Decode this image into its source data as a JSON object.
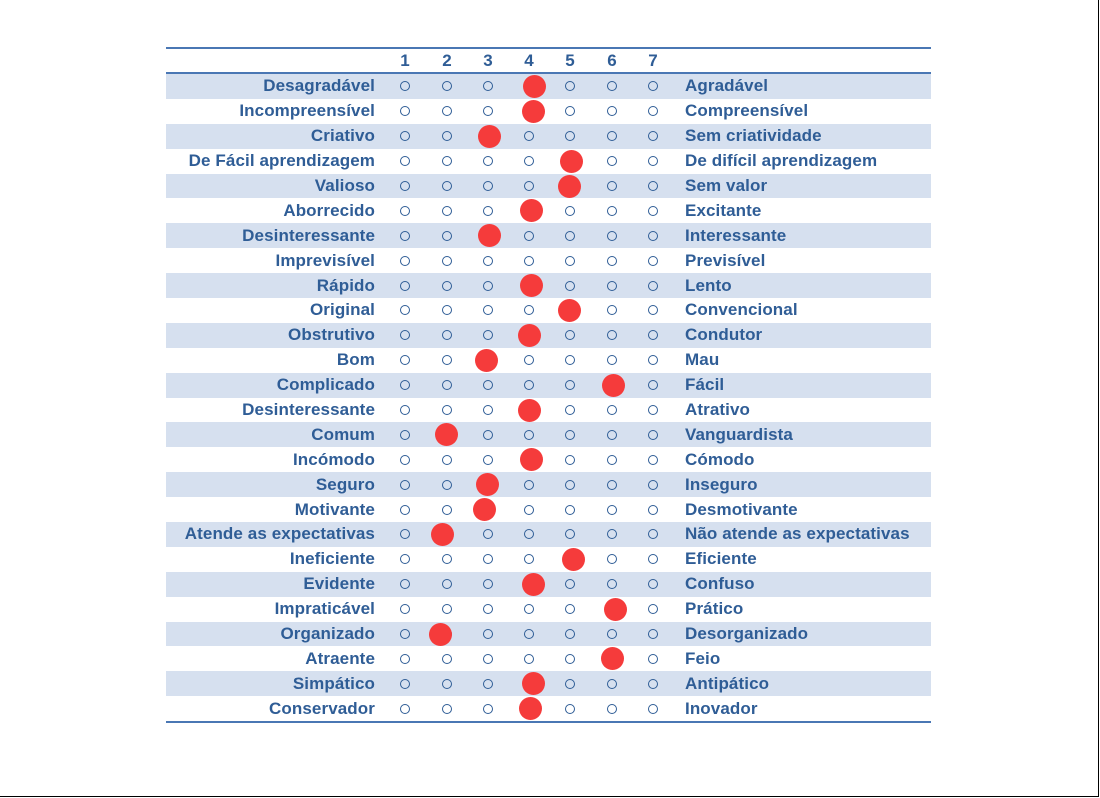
{
  "scale": {
    "points": [
      "1",
      "2",
      "3",
      "4",
      "5",
      "6",
      "7"
    ]
  },
  "colors": {
    "label_text": "#2f5d96",
    "row_shade": "#d6e0ef",
    "rule": "#4a77b4",
    "marker": "#f53b3b"
  },
  "items": [
    {
      "left": "Desagradável",
      "right": "Agradável",
      "value": 4
    },
    {
      "left": "Incompreensível",
      "right": "Compreensível",
      "value": 4
    },
    {
      "left": "Criativo",
      "right": "Sem criatividade",
      "value": 3
    },
    {
      "left": "De Fácil aprendizagem",
      "right": "De difícil aprendizagem",
      "value": 5
    },
    {
      "left": "Valioso",
      "right": "Sem valor",
      "value": 5
    },
    {
      "left": "Aborrecido",
      "right": "Excitante",
      "value": 4
    },
    {
      "left": "Desinteressante",
      "right": "Interessante",
      "value": 3
    },
    {
      "left": "Imprevisível",
      "right": "Previsível",
      "value": null
    },
    {
      "left": "Rápido",
      "right": "Lento",
      "value": 4
    },
    {
      "left": "Original",
      "right": "Convencional",
      "value": 5
    },
    {
      "left": "Obstrutivo",
      "right": "Condutor",
      "value": 4
    },
    {
      "left": "Bom",
      "right": "Mau",
      "value": 3
    },
    {
      "left": "Complicado",
      "right": "Fácil",
      "value": 6
    },
    {
      "left": "Desinteressante",
      "right": "Atrativo",
      "value": 4
    },
    {
      "left": "Comum",
      "right": "Vanguardista",
      "value": 2
    },
    {
      "left": "Incómodo",
      "right": "Cómodo",
      "value": 4
    },
    {
      "left": "Seguro",
      "right": "Inseguro",
      "value": 3
    },
    {
      "left": "Motivante",
      "right": "Desmotivante",
      "value": 3
    },
    {
      "left": "Atende as expectativas",
      "right": "Não atende as expectativas",
      "value": 2
    },
    {
      "left": "Ineficiente",
      "right": "Eficiente",
      "value": 5
    },
    {
      "left": "Evidente",
      "right": "Confuso",
      "value": 4
    },
    {
      "left": "Impraticável",
      "right": "Prático",
      "value": 6
    },
    {
      "left": "Organizado",
      "right": "Desorganizado",
      "value": 2
    },
    {
      "left": "Atraente",
      "right": "Feio",
      "value": 6
    },
    {
      "left": "Simpático",
      "right": "Antipático",
      "value": 4
    },
    {
      "left": "Conservador",
      "right": "Inovador",
      "value": 4
    }
  ]
}
